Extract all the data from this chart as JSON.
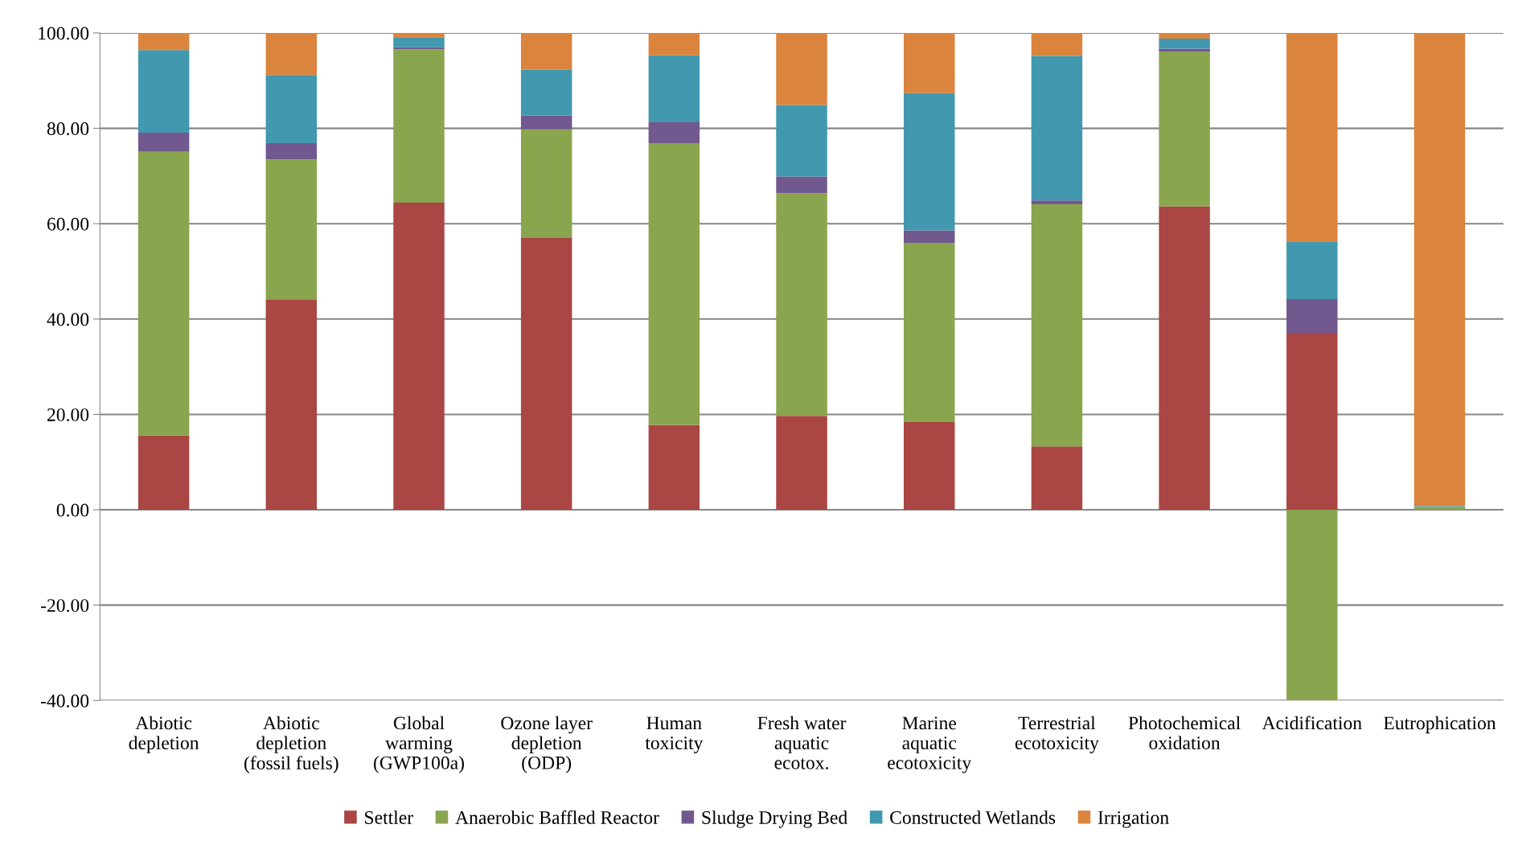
{
  "chart_data": {
    "type": "bar",
    "stacked": true,
    "categories": [
      "Abiotic\ndepletion",
      "Abiotic\ndepletion\n(fossil fuels)",
      "Global\nwarming\n(GWP100a)",
      "Ozone layer\ndepletion\n(ODP)",
      "Human\ntoxicity",
      "Fresh water\naquatic\necotox.",
      "Marine\naquatic\necotoxicity",
      "Terrestrial\necotoxicity",
      "Photochemical\noxidation",
      "Acidification",
      "Eutrophication"
    ],
    "series": [
      {
        "name": "Settler",
        "color": "#aa4643",
        "values": [
          15.6,
          44.0,
          64.4,
          57.0,
          17.8,
          19.7,
          18.4,
          13.3,
          63.6,
          37.1,
          0
        ]
      },
      {
        "name": "Anaerobic Baffled Reactor",
        "color": "#89a54e",
        "values": [
          59.5,
          29.5,
          32.2,
          22.8,
          59.1,
          46.7,
          37.6,
          50.8,
          32.5,
          -40.0,
          0.6
        ]
      },
      {
        "name": "Sludge Drying Bed",
        "color": "#71588f",
        "values": [
          4.0,
          3.4,
          0.4,
          2.9,
          4.4,
          3.5,
          2.6,
          0.8,
          0.6,
          7.1,
          0
        ]
      },
      {
        "name": "Constructed Wetlands",
        "color": "#4198af",
        "values": [
          17.3,
          14.3,
          2.1,
          9.6,
          14.0,
          15.0,
          28.8,
          30.3,
          2.1,
          12.1,
          0.2
        ]
      },
      {
        "name": "Irrigation",
        "color": "#db843d",
        "values": [
          3.6,
          8.8,
          0.9,
          7.7,
          4.7,
          15.1,
          12.6,
          4.8,
          1.2,
          43.7,
          99.2
        ]
      }
    ],
    "ylim": [
      -40,
      100
    ],
    "yticks": [
      {
        "value": -40,
        "label": "-40.00"
      },
      {
        "value": -20,
        "label": "-20.00"
      },
      {
        "value": 0,
        "label": "0.00"
      },
      {
        "value": 20,
        "label": "20.00"
      },
      {
        "value": 40,
        "label": "40.00"
      },
      {
        "value": 60,
        "label": "60.00"
      },
      {
        "value": 80,
        "label": "80.00"
      },
      {
        "value": 100,
        "label": "100.00"
      }
    ],
    "grid": "y",
    "legend": "bottom"
  }
}
